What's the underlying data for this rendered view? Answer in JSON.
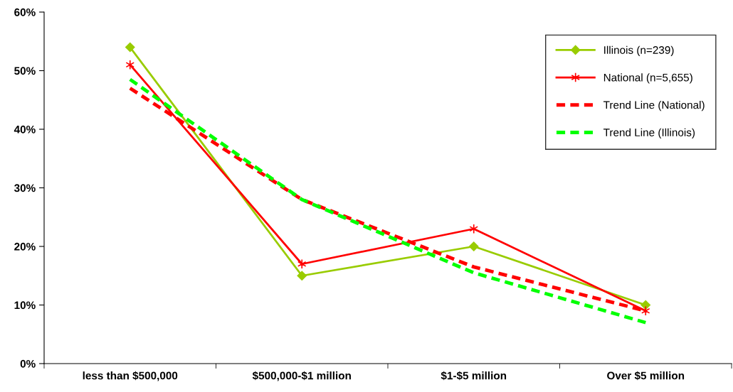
{
  "chart_data": {
    "type": "line",
    "categories": [
      "less than $500,000",
      "$500,000-$1 million",
      "$1-$5 million",
      "Over $5 million"
    ],
    "series": [
      {
        "name": "Illinois (n=239)",
        "color": "#99cc00",
        "values": [
          54,
          15,
          20,
          10
        ],
        "marker": "diamond",
        "line_style": "solid"
      },
      {
        "name": "National (n=5,655)",
        "color": "#ff0000",
        "values": [
          51,
          17,
          23,
          9
        ],
        "marker": "cross",
        "line_style": "solid"
      },
      {
        "name": "Trend Line (National)",
        "color": "#ff0000",
        "values": [
          47,
          28,
          16.5,
          9
        ],
        "marker": "none",
        "line_style": "dashed"
      },
      {
        "name": "Trend Line (Illinois)",
        "color": "#00ff00",
        "values": [
          48.5,
          28,
          15.5,
          7
        ],
        "marker": "none",
        "line_style": "dashed"
      }
    ],
    "ylim": [
      0,
      60
    ],
    "yticks": [
      {
        "value": 0,
        "label": "0%"
      },
      {
        "value": 10,
        "label": "10%"
      },
      {
        "value": 20,
        "label": "20%"
      },
      {
        "value": 30,
        "label": "30%"
      },
      {
        "value": 40,
        "label": "40%"
      },
      {
        "value": 50,
        "label": "50%"
      },
      {
        "value": 60,
        "label": "60%"
      }
    ],
    "grid": false,
    "legend": "top right"
  }
}
